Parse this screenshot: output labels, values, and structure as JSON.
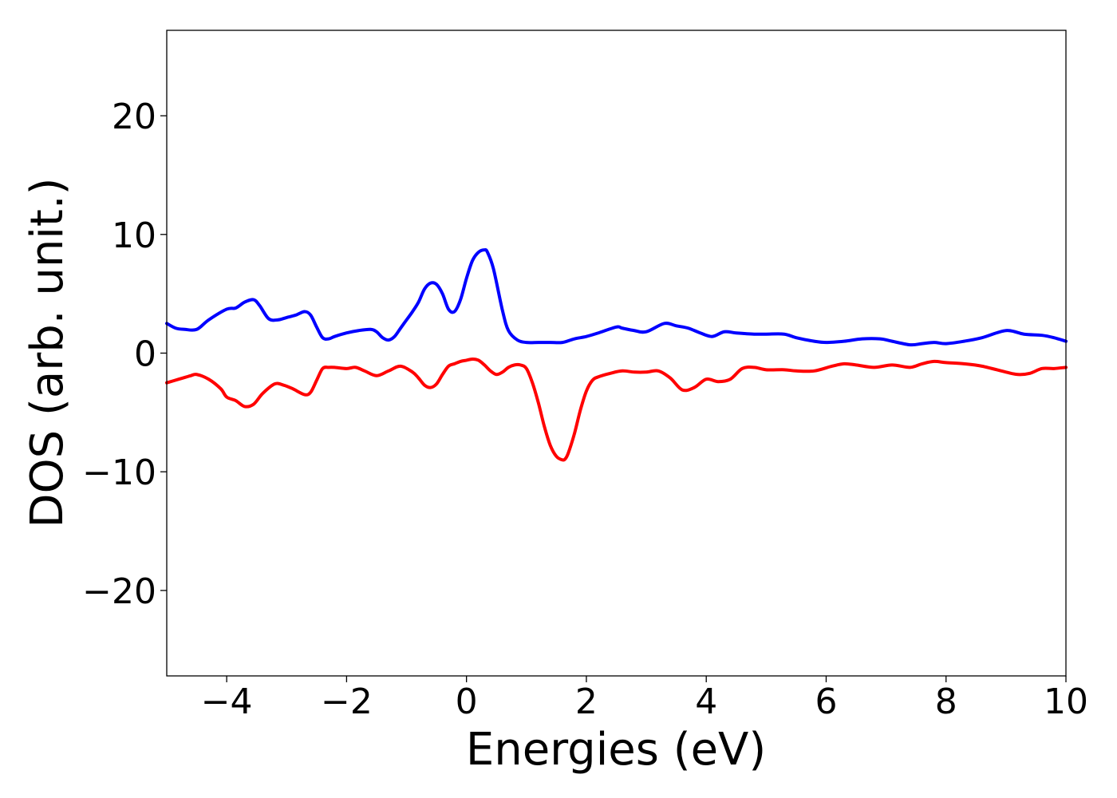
{
  "chart_data": {
    "type": "line",
    "title": "",
    "xlabel": "Energies (eV)",
    "ylabel": "DOS (arb. unit.)",
    "xlim": [
      -5,
      10
    ],
    "ylim": [
      -27.2,
      27.2
    ],
    "grid": false,
    "legend": "none",
    "x_ticks": [
      -4,
      -2,
      0,
      2,
      4,
      6,
      8,
      10
    ],
    "x_tick_labels": [
      "−4",
      "−2",
      "0",
      "2",
      "4",
      "6",
      "8",
      "10"
    ],
    "y_ticks": [
      20,
      10,
      0,
      -10,
      -20
    ],
    "y_tick_labels": [
      "20",
      "10",
      "0",
      "−10",
      "−20"
    ],
    "series": [
      {
        "color": "#0000ff",
        "x": [
          -5.0,
          -4.85,
          -4.7,
          -4.5,
          -4.3,
          -4.0,
          -3.85,
          -3.7,
          -3.55,
          -3.45,
          -3.3,
          -3.15,
          -3.0,
          -2.85,
          -2.7,
          -2.6,
          -2.5,
          -2.4,
          -2.3,
          -2.2,
          -2.0,
          -1.8,
          -1.6,
          -1.5,
          -1.4,
          -1.3,
          -1.2,
          -1.1,
          -1.0,
          -0.9,
          -0.8,
          -0.7,
          -0.6,
          -0.5,
          -0.4,
          -0.3,
          -0.2,
          -0.1,
          0.0,
          0.1,
          0.2,
          0.3,
          0.35,
          0.45,
          0.6,
          0.7,
          0.85,
          1.0,
          1.2,
          1.4,
          1.6,
          1.8,
          2.0,
          2.2,
          2.5,
          2.6,
          2.8,
          3.0,
          3.3,
          3.5,
          3.7,
          3.9,
          4.1,
          4.3,
          4.5,
          4.8,
          5.0,
          5.3,
          5.5,
          5.8,
          6.0,
          6.3,
          6.6,
          6.9,
          7.1,
          7.4,
          7.6,
          7.8,
          8.0,
          8.3,
          8.6,
          9.0,
          9.3,
          9.6,
          9.8,
          10.0
        ],
        "y": [
          2.5,
          2.1,
          2.0,
          2.0,
          2.8,
          3.7,
          3.8,
          4.3,
          4.5,
          4.0,
          2.9,
          2.8,
          3.0,
          3.2,
          3.5,
          3.2,
          2.2,
          1.3,
          1.2,
          1.4,
          1.7,
          1.9,
          2.0,
          1.8,
          1.3,
          1.1,
          1.4,
          2.1,
          2.8,
          3.5,
          4.3,
          5.4,
          5.9,
          5.8,
          5.0,
          3.7,
          3.5,
          4.5,
          6.3,
          7.8,
          8.5,
          8.7,
          8.5,
          7.1,
          3.6,
          1.9,
          1.1,
          0.9,
          0.9,
          0.9,
          0.9,
          1.2,
          1.4,
          1.7,
          2.2,
          2.1,
          1.9,
          1.8,
          2.5,
          2.3,
          2.1,
          1.7,
          1.4,
          1.8,
          1.7,
          1.6,
          1.6,
          1.6,
          1.3,
          1.0,
          0.9,
          1.0,
          1.2,
          1.2,
          1.0,
          0.7,
          0.8,
          0.9,
          0.8,
          1.0,
          1.3,
          1.9,
          1.6,
          1.5,
          1.3,
          1.0
        ]
      },
      {
        "color": "#ff0000",
        "x": [
          -5.0,
          -4.8,
          -4.6,
          -4.5,
          -4.3,
          -4.1,
          -4.0,
          -3.85,
          -3.7,
          -3.55,
          -3.4,
          -3.2,
          -3.05,
          -2.9,
          -2.7,
          -2.6,
          -2.5,
          -2.4,
          -2.3,
          -2.2,
          -2.0,
          -1.85,
          -1.7,
          -1.5,
          -1.3,
          -1.1,
          -0.9,
          -0.8,
          -0.7,
          -0.6,
          -0.5,
          -0.4,
          -0.3,
          -0.2,
          -0.1,
          0.0,
          0.1,
          0.2,
          0.3,
          0.4,
          0.5,
          0.6,
          0.7,
          0.8,
          0.9,
          1.0,
          1.1,
          1.2,
          1.3,
          1.4,
          1.5,
          1.6,
          1.65,
          1.7,
          1.8,
          1.9,
          2.0,
          2.1,
          2.2,
          2.4,
          2.6,
          2.8,
          3.0,
          3.2,
          3.4,
          3.6,
          3.8,
          4.0,
          4.2,
          4.4,
          4.6,
          4.8,
          5.0,
          5.3,
          5.5,
          5.8,
          6.1,
          6.3,
          6.5,
          6.8,
          7.1,
          7.4,
          7.6,
          7.8,
          8.0,
          8.3,
          8.6,
          9.0,
          9.2,
          9.4,
          9.6,
          9.8,
          10.0
        ],
        "y": [
          -2.5,
          -2.2,
          -1.9,
          -1.8,
          -2.2,
          -3.0,
          -3.7,
          -4.0,
          -4.5,
          -4.3,
          -3.4,
          -2.6,
          -2.7,
          -3.0,
          -3.5,
          -3.3,
          -2.3,
          -1.3,
          -1.2,
          -1.2,
          -1.3,
          -1.2,
          -1.5,
          -1.9,
          -1.5,
          -1.1,
          -1.6,
          -2.1,
          -2.7,
          -2.9,
          -2.6,
          -1.8,
          -1.1,
          -0.9,
          -0.7,
          -0.6,
          -0.5,
          -0.6,
          -1.0,
          -1.5,
          -1.8,
          -1.6,
          -1.2,
          -1.0,
          -1.0,
          -1.3,
          -2.5,
          -4.2,
          -6.2,
          -7.8,
          -8.7,
          -9.0,
          -8.9,
          -8.4,
          -6.8,
          -4.8,
          -3.2,
          -2.3,
          -2.0,
          -1.7,
          -1.5,
          -1.6,
          -1.6,
          -1.5,
          -2.1,
          -3.1,
          -2.9,
          -2.2,
          -2.4,
          -2.2,
          -1.3,
          -1.2,
          -1.4,
          -1.4,
          -1.5,
          -1.5,
          -1.1,
          -0.9,
          -1.0,
          -1.2,
          -1.0,
          -1.2,
          -0.9,
          -0.7,
          -0.8,
          -0.9,
          -1.1,
          -1.6,
          -1.8,
          -1.7,
          -1.3,
          -1.3,
          -1.2
        ]
      }
    ]
  }
}
